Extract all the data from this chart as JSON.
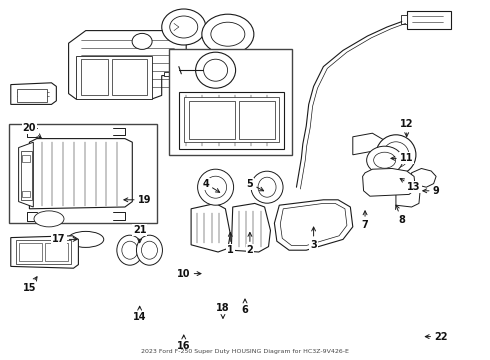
{
  "title": "2023 Ford F-250 Super Duty HOUSING Diagram for HC3Z-9V426-E",
  "bg_color": "#ffffff",
  "line_color": "#1a1a1a",
  "text_color": "#111111",
  "fig_width": 4.9,
  "fig_height": 3.6,
  "dpi": 100,
  "labels": {
    "1": [
      0.47,
      0.635,
      0.47,
      0.695
    ],
    "2": [
      0.51,
      0.635,
      0.51,
      0.695
    ],
    "3": [
      0.64,
      0.62,
      0.64,
      0.68
    ],
    "4": [
      0.455,
      0.54,
      0.42,
      0.51
    ],
    "5": [
      0.545,
      0.535,
      0.51,
      0.51
    ],
    "6": [
      0.5,
      0.82,
      0.5,
      0.86
    ],
    "7": [
      0.745,
      0.575,
      0.745,
      0.625
    ],
    "8": [
      0.805,
      0.56,
      0.82,
      0.61
    ],
    "9": [
      0.855,
      0.53,
      0.89,
      0.53
    ],
    "10": [
      0.418,
      0.76,
      0.375,
      0.76
    ],
    "11": [
      0.79,
      0.44,
      0.83,
      0.44
    ],
    "12": [
      0.83,
      0.39,
      0.83,
      0.345
    ],
    "13": [
      0.81,
      0.49,
      0.845,
      0.52
    ],
    "14": [
      0.285,
      0.84,
      0.285,
      0.88
    ],
    "15": [
      0.08,
      0.76,
      0.06,
      0.8
    ],
    "16": [
      0.375,
      0.92,
      0.375,
      0.96
    ],
    "17": [
      0.165,
      0.665,
      0.12,
      0.665
    ],
    "18": [
      0.455,
      0.895,
      0.455,
      0.855
    ],
    "19": [
      0.245,
      0.555,
      0.295,
      0.555
    ],
    "20": [
      0.09,
      0.39,
      0.06,
      0.355
    ],
    "21": [
      0.285,
      0.685,
      0.285,
      0.64
    ],
    "22": [
      0.86,
      0.935,
      0.9,
      0.935
    ]
  }
}
